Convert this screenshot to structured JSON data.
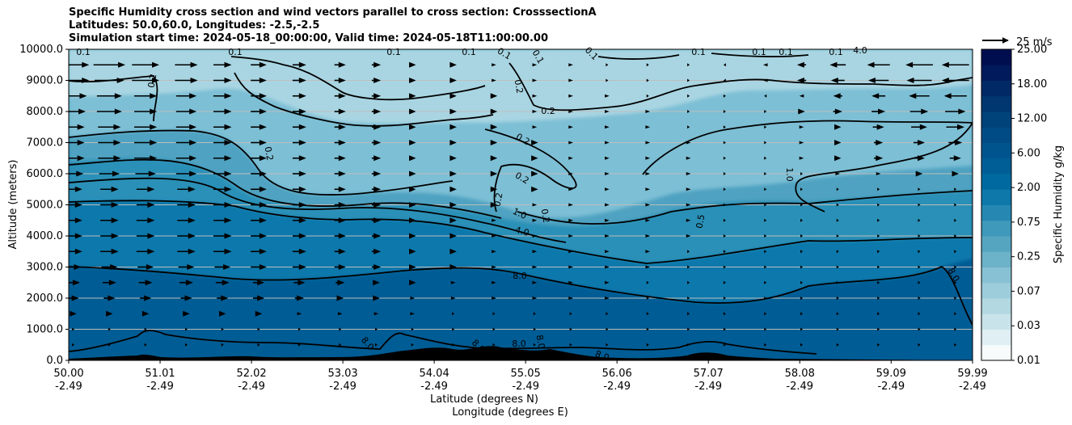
{
  "chart_data": {
    "type": "contour",
    "title_lines": [
      "Specific Humidity cross section and wind vectors parallel to cross section: CrosssectionA",
      "Latitudes: 50.0,60.0, Longitudes: -2.5,-2.5",
      "Simulation start time: 2024-05-18_00:00:00, Valid time: 2024-05-18T11:00:00.00"
    ],
    "xlabel_lat": "Latitude (degrees N)",
    "xlabel_lon": "Longitude (degrees E)",
    "ylabel": "Altitude (meters)",
    "ylim": [
      0,
      10000
    ],
    "yticks": [
      "0.0",
      "1000.0",
      "2000.0",
      "3000.0",
      "4000.0",
      "5000.0",
      "6000.0",
      "7000.0",
      "8000.0",
      "9000.0",
      "10000.0"
    ],
    "xlim": [
      50.0,
      59.99
    ],
    "xticks": [
      {
        "lat": "50.00",
        "lon": "-2.49"
      },
      {
        "lat": "51.01",
        "lon": "-2.49"
      },
      {
        "lat": "52.02",
        "lon": "-2.49"
      },
      {
        "lat": "53.03",
        "lon": "-2.49"
      },
      {
        "lat": "54.04",
        "lon": "-2.49"
      },
      {
        "lat": "55.05",
        "lon": "-2.49"
      },
      {
        "lat": "56.06",
        "lon": "-2.49"
      },
      {
        "lat": "57.07",
        "lon": "-2.49"
      },
      {
        "lat": "58.08",
        "lon": "-2.49"
      },
      {
        "lat": "59.09",
        "lon": "-2.49"
      },
      {
        "lat": "59.99",
        "lon": "-2.49"
      }
    ],
    "grid": "horizontal",
    "colorbar": {
      "label": "Specific Humidity g/kg",
      "tick_labels": [
        "0.01",
        "0.03",
        "0.07",
        "0.25",
        "0.75",
        "2.00",
        "6.00",
        "12.00",
        "18.00",
        "25.00"
      ],
      "colors": [
        "#f7fbfc",
        "#e0eff3",
        "#c9e3ea",
        "#b3d8e2",
        "#9dcddb",
        "#87c1d3",
        "#6cb2c8",
        "#56a5c0",
        "#3e99ba",
        "#2688b2",
        "#0e78ab",
        "#006aa0",
        "#005e96",
        "#00548d",
        "#004b85",
        "#00427a",
        "#003770",
        "#002966",
        "#001a5b",
        "#000e50"
      ]
    },
    "quiver_key": "25 m/s",
    "contour_labels": [
      "0.1",
      "0.1",
      "0.1",
      "0.1",
      "0.1",
      "0.1",
      "0.1",
      "0.1",
      "0.1",
      "0.1",
      "0.1",
      "0.2",
      "0.2",
      "0.2",
      "0.2",
      "0.2",
      "0.2",
      "0.2",
      "0.2",
      "0.5",
      "1.0",
      "1.0",
      "4.0",
      "4.0",
      "8.0",
      "8.0",
      "8.0",
      "8.0",
      "8.0",
      "8.0",
      "8.0"
    ],
    "wind_columns_lat": [
      50.05,
      50.45,
      50.85,
      51.3,
      51.7,
      52.1,
      52.55,
      53.0,
      53.4,
      53.8,
      54.25,
      54.7,
      55.15,
      55.55,
      55.95,
      56.4,
      56.85,
      57.25,
      57.7,
      58.1,
      58.5,
      58.95,
      59.4,
      59.8
    ],
    "wind_levels_m": [
      500,
      1000,
      1500,
      2000,
      2500,
      3000,
      3500,
      4000,
      4500,
      5000,
      5500,
      6000,
      6500,
      7000,
      7500,
      8000,
      8500,
      9000,
      9500
    ],
    "wind_u_ms": [
      [
        0.3,
        0.3,
        0.3,
        0.3,
        0.3,
        0.3,
        0.3,
        0.3,
        0.3,
        0.2,
        0.2,
        0.2,
        0.2,
        0.2,
        0.2,
        0.2,
        0.2,
        0.2,
        0.2,
        0.2,
        0.2,
        0.2,
        0.2,
        0.2
      ],
      [
        0.3,
        0.3,
        0.3,
        0.3,
        0.3,
        0.3,
        0.3,
        0.3,
        0.3,
        0.2,
        0.2,
        0.2,
        0.2,
        0.2,
        0.2,
        0.2,
        0.2,
        0.2,
        0.2,
        0.2,
        0.2,
        0.2,
        0.2,
        0.2
      ],
      [
        3,
        3,
        3,
        3,
        3,
        3,
        2,
        2,
        2,
        2,
        1,
        1,
        1,
        1,
        1,
        1,
        1,
        1,
        1,
        1,
        1,
        1,
        1,
        1
      ],
      [
        5,
        5,
        5,
        5,
        5,
        5,
        4,
        3,
        3,
        2,
        2,
        2,
        2,
        2,
        2,
        1,
        1,
        1,
        1,
        1,
        1,
        1,
        1,
        1
      ],
      [
        6,
        6,
        6,
        6,
        6,
        5,
        5,
        4,
        3,
        3,
        2,
        2,
        2,
        2,
        2,
        1,
        1,
        1,
        1,
        1,
        1,
        1,
        1,
        1
      ],
      [
        7,
        7,
        7,
        7,
        7,
        7,
        6,
        5,
        4,
        3,
        3,
        2,
        2,
        2,
        2,
        2,
        1,
        1,
        1,
        1,
        1,
        1,
        1,
        1
      ],
      [
        8,
        8,
        8,
        8,
        8,
        7,
        6,
        5,
        4,
        3,
        3,
        2,
        2,
        2,
        2,
        2,
        1,
        1,
        1,
        1,
        1,
        1,
        1,
        1
      ],
      [
        8,
        8,
        8,
        8,
        8,
        7,
        6,
        5,
        4,
        3,
        3,
        2,
        2,
        2,
        2,
        2,
        2,
        1,
        1,
        1,
        1,
        1,
        1,
        1
      ],
      [
        8,
        8,
        8,
        8,
        8,
        7,
        6,
        5,
        4,
        3,
        3,
        2,
        2,
        2,
        2,
        2,
        2,
        1,
        1,
        1,
        1,
        1,
        1,
        1
      ],
      [
        8,
        8,
        8,
        8,
        8,
        7,
        6,
        5,
        4,
        3,
        3,
        3,
        2,
        2,
        2,
        2,
        2,
        1,
        1,
        1,
        1,
        1,
        1,
        1
      ],
      [
        8,
        8,
        8,
        8,
        8,
        7,
        6,
        5,
        4,
        3,
        3,
        3,
        3,
        2,
        2,
        2,
        2,
        1,
        1,
        1,
        1,
        1,
        1,
        1
      ],
      [
        9,
        9,
        9,
        9,
        8,
        7,
        6,
        5,
        4,
        3,
        3,
        3,
        3,
        2,
        2,
        2,
        2,
        1,
        1,
        1,
        2,
        2,
        3,
        3
      ],
      [
        10,
        10,
        10,
        9,
        8,
        7,
        6,
        5,
        4,
        3,
        3,
        3,
        3,
        2,
        2,
        2,
        2,
        1,
        1,
        2,
        3,
        4,
        5,
        5
      ],
      [
        10,
        10,
        10,
        9,
        8,
        7,
        6,
        5,
        4,
        3,
        3,
        3,
        3,
        2,
        2,
        2,
        2,
        1,
        1,
        2,
        3,
        4,
        5,
        6
      ],
      [
        10,
        10,
        10,
        9,
        8,
        7,
        6,
        5,
        4,
        3,
        3,
        3,
        2,
        2,
        2,
        2,
        1,
        1,
        1,
        2,
        3,
        5,
        7,
        8
      ],
      [
        11,
        11,
        10,
        9,
        8,
        7,
        6,
        5,
        4,
        3,
        3,
        3,
        2,
        2,
        2,
        2,
        1,
        1,
        1,
        3,
        4,
        6,
        8,
        9
      ],
      [
        12,
        11,
        10,
        9,
        8,
        7,
        6,
        5,
        4,
        3,
        3,
        3,
        2,
        2,
        2,
        1,
        1,
        1,
        -1,
        -2,
        -4,
        -6,
        -9,
        -10
      ],
      [
        14,
        13,
        12,
        10,
        8,
        7,
        6,
        5,
        4,
        3,
        3,
        2,
        2,
        2,
        1,
        1,
        1,
        -1,
        -2,
        -4,
        -6,
        -9,
        -11,
        -12
      ],
      [
        14,
        14,
        12,
        10,
        8,
        7,
        6,
        5,
        4,
        3,
        3,
        2,
        2,
        2,
        1,
        1,
        1,
        -1,
        -2,
        -4,
        -7,
        -10,
        -12,
        -12
      ]
    ]
  }
}
